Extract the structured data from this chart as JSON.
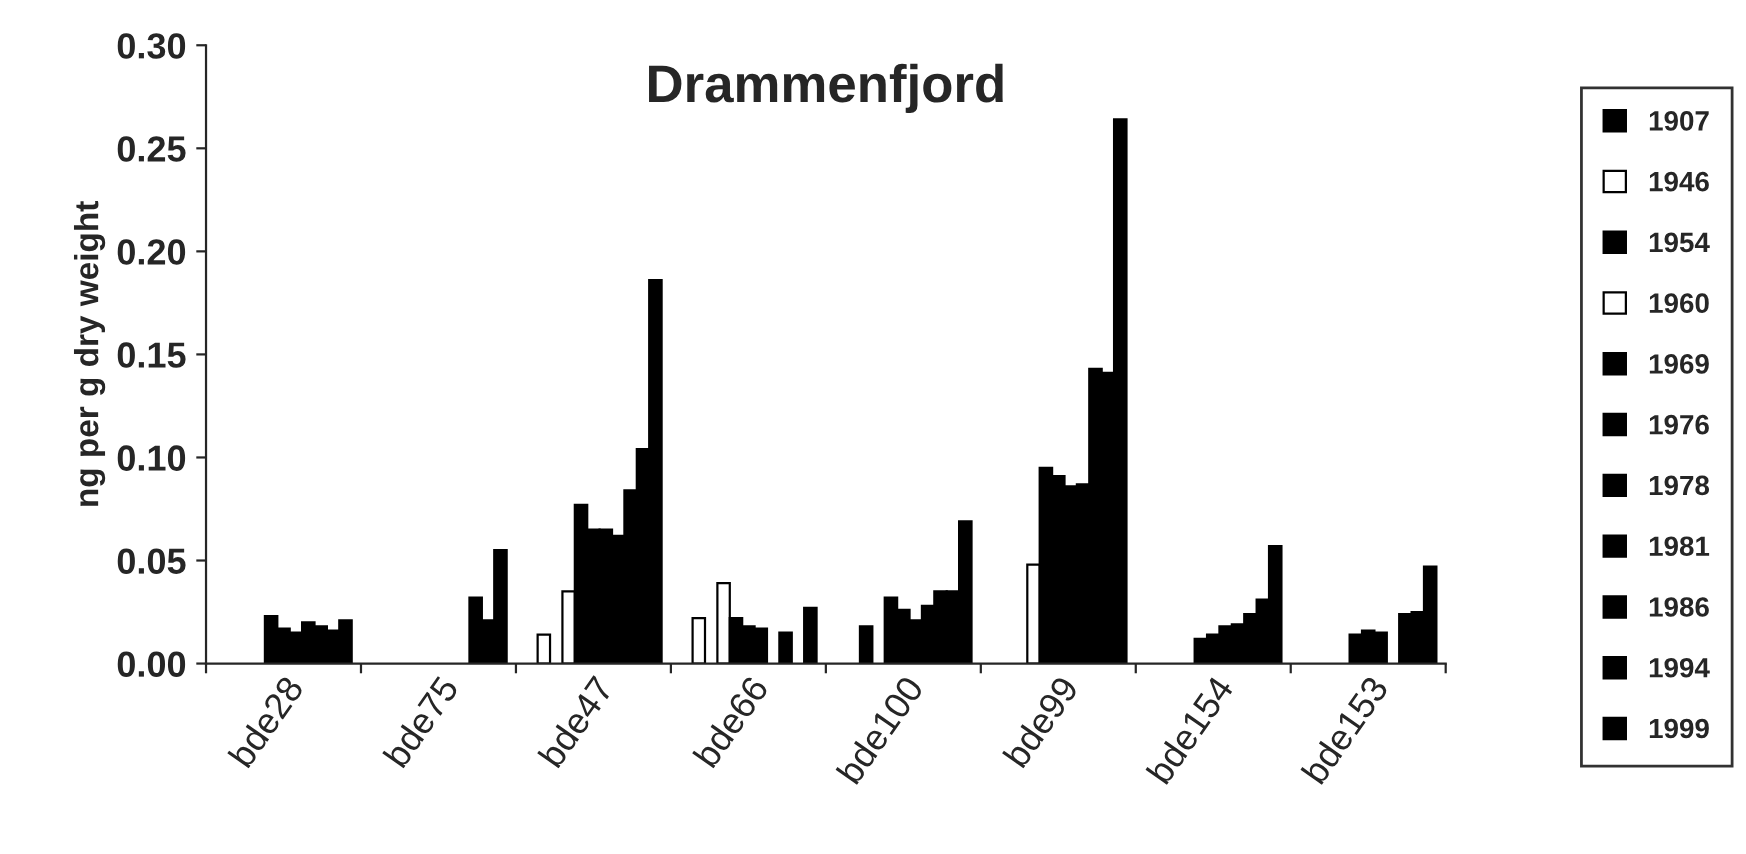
{
  "chart_data": {
    "type": "bar",
    "title": "Drammenfjord",
    "ylabel": "ng per g dry weight",
    "categories": [
      "bde28",
      "bde75",
      "bde47",
      "bde66",
      "bde100",
      "bde99",
      "bde154",
      "bde153"
    ],
    "ylim": [
      0,
      0.3
    ],
    "yticks": [
      {
        "value": 0,
        "label": "0.00"
      },
      {
        "value": 0.05,
        "label": "0.05"
      },
      {
        "value": 0.1,
        "label": "0.10"
      },
      {
        "value": 0.15,
        "label": "0.15"
      },
      {
        "value": 0.2,
        "label": "0.20"
      },
      {
        "value": 0.25,
        "label": "0.25"
      },
      {
        "value": 0.3,
        "label": "0.30"
      }
    ],
    "grid": false,
    "legend": "right",
    "series": [
      {
        "name": "1907",
        "color": "#000000",
        "values": [
          null,
          null,
          null,
          null,
          null,
          null,
          null,
          null
        ]
      },
      {
        "name": "1946",
        "color": "#ffffff",
        "values": [
          null,
          null,
          0.014,
          0.022,
          null,
          null,
          null,
          null
        ]
      },
      {
        "name": "1954",
        "color": "#000000",
        "values": [
          null,
          null,
          null,
          null,
          0.018,
          null,
          null,
          null
        ]
      },
      {
        "name": "1960",
        "color": "#ffffff",
        "values": [
          null,
          null,
          0.035,
          0.039,
          null,
          0.048,
          null,
          null
        ]
      },
      {
        "name": "1969",
        "color": "#000000",
        "values": [
          0.023,
          null,
          0.077,
          0.022,
          0.032,
          0.095,
          0.012,
          0.014
        ]
      },
      {
        "name": "1976",
        "color": "#000000",
        "values": [
          0.017,
          null,
          0.065,
          0.018,
          0.026,
          0.091,
          0.014,
          0.016
        ]
      },
      {
        "name": "1978",
        "color": "#000000",
        "values": [
          0.015,
          null,
          0.065,
          0.017,
          0.021,
          0.086,
          0.018,
          0.015
        ]
      },
      {
        "name": "1981",
        "color": "#000000",
        "values": [
          0.02,
          null,
          0.062,
          null,
          0.028,
          0.087,
          0.019,
          null
        ]
      },
      {
        "name": "1986",
        "color": "#000000",
        "values": [
          0.018,
          0.032,
          0.084,
          0.015,
          0.035,
          0.143,
          0.024,
          0.024
        ]
      },
      {
        "name": "1994",
        "color": "#000000",
        "values": [
          0.016,
          0.021,
          0.104,
          null,
          0.035,
          0.141,
          0.031,
          0.025
        ]
      },
      {
        "name": "1999",
        "color": "#000000",
        "values": [
          0.021,
          0.055,
          0.186,
          0.027,
          0.069,
          0.264,
          0.057,
          0.047
        ]
      }
    ]
  }
}
